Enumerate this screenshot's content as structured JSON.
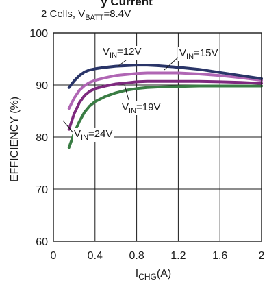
{
  "header": {
    "title_fragment": "y  Current",
    "subtitle_prefix": "2 Cells, V",
    "subtitle_sub": "BATT",
    "subtitle_suffix": "=8.4V"
  },
  "chart_data": {
    "type": "line",
    "xlabel_main": "I",
    "xlabel_sub": "CHG",
    "xlabel_suffix": "(A)",
    "ylabel": "EFFICIENCY (%)",
    "xlim": [
      0,
      2
    ],
    "ylim": [
      60,
      100
    ],
    "x_ticks": [
      0,
      0.4,
      0.8,
      1.2,
      1.6,
      2
    ],
    "x_tick_labels": [
      "0",
      "0.4",
      "0.8",
      "1.2",
      "1.6",
      "2"
    ],
    "y_ticks": [
      60,
      70,
      80,
      90,
      100
    ],
    "y_tick_labels": [
      "60",
      "70",
      "80",
      "90",
      "100"
    ],
    "grid": true,
    "series": [
      {
        "label_main": "V",
        "label_sub": "IN",
        "label_suffix": "=12V",
        "color": "#2a3568",
        "points": [
          [
            0.15,
            89.5
          ],
          [
            0.2,
            90.8
          ],
          [
            0.25,
            91.8
          ],
          [
            0.3,
            92.5
          ],
          [
            0.35,
            92.9
          ],
          [
            0.4,
            93.1
          ],
          [
            0.5,
            93.4
          ],
          [
            0.6,
            93.6
          ],
          [
            0.7,
            93.7
          ],
          [
            0.8,
            93.8
          ],
          [
            0.9,
            93.8
          ],
          [
            1.0,
            93.7
          ],
          [
            1.2,
            93.4
          ],
          [
            1.4,
            93.0
          ],
          [
            1.6,
            92.4
          ],
          [
            1.8,
            91.8
          ],
          [
            2.0,
            91.2
          ]
        ]
      },
      {
        "label_main": "V",
        "label_sub": "IN",
        "label_suffix": "=15V",
        "color": "#b066b4",
        "points": [
          [
            0.15,
            85.5
          ],
          [
            0.2,
            87.5
          ],
          [
            0.25,
            89.0
          ],
          [
            0.3,
            89.9
          ],
          [
            0.35,
            90.5
          ],
          [
            0.4,
            90.9
          ],
          [
            0.5,
            91.4
          ],
          [
            0.6,
            91.8
          ],
          [
            0.7,
            92.0
          ],
          [
            0.8,
            92.2
          ],
          [
            0.9,
            92.3
          ],
          [
            1.0,
            92.3
          ],
          [
            1.2,
            92.3
          ],
          [
            1.4,
            92.1
          ],
          [
            1.6,
            91.8
          ],
          [
            1.8,
            91.4
          ],
          [
            2.0,
            90.9
          ]
        ]
      },
      {
        "label_main": "V",
        "label_sub": "IN",
        "label_suffix": "=19V",
        "color": "#7e2a7e",
        "points": [
          [
            0.15,
            81.5
          ],
          [
            0.2,
            84.5
          ],
          [
            0.25,
            86.6
          ],
          [
            0.3,
            88.0
          ],
          [
            0.35,
            88.8
          ],
          [
            0.4,
            89.3
          ],
          [
            0.5,
            89.8
          ],
          [
            0.6,
            90.2
          ],
          [
            0.7,
            90.4
          ],
          [
            0.8,
            90.6
          ],
          [
            0.9,
            90.7
          ],
          [
            1.0,
            90.7
          ],
          [
            1.2,
            90.7
          ],
          [
            1.4,
            90.7
          ],
          [
            1.6,
            90.6
          ],
          [
            1.8,
            90.5
          ],
          [
            2.0,
            90.3
          ]
        ]
      },
      {
        "label_main": "V",
        "label_sub": "IN",
        "label_suffix": "=24V",
        "color": "#3a7d44",
        "points": [
          [
            0.15,
            78.0
          ],
          [
            0.2,
            80.8
          ],
          [
            0.25,
            83.0
          ],
          [
            0.3,
            84.8
          ],
          [
            0.35,
            86.0
          ],
          [
            0.4,
            86.8
          ],
          [
            0.5,
            87.8
          ],
          [
            0.6,
            88.5
          ],
          [
            0.7,
            89.0
          ],
          [
            0.8,
            89.3
          ],
          [
            0.9,
            89.5
          ],
          [
            1.0,
            89.6
          ],
          [
            1.2,
            89.7
          ],
          [
            1.4,
            89.8
          ],
          [
            1.6,
            89.8
          ],
          [
            1.8,
            89.8
          ],
          [
            2.0,
            89.8
          ]
        ]
      }
    ]
  }
}
